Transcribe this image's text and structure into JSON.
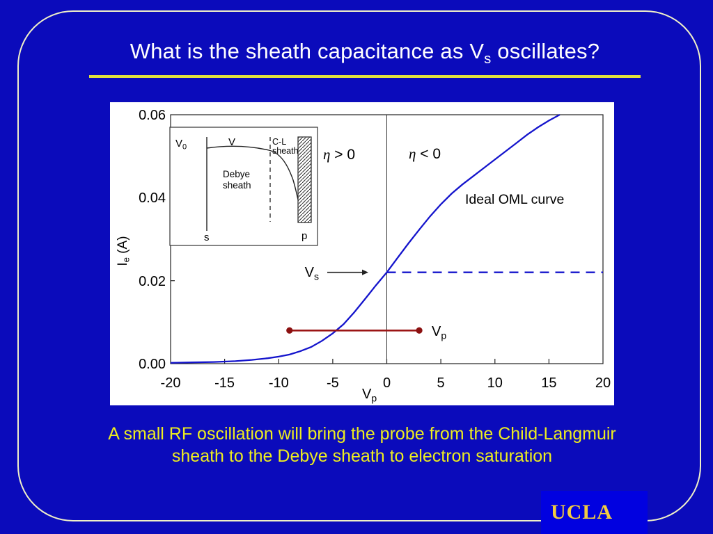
{
  "slide": {
    "title_part1": "What is the sheath capacitance as V",
    "title_sub": "s",
    "title_part2": " oscillates?",
    "caption_line1": "A small RF oscillation will bring the probe from the Child-Langmuir",
    "caption_line2": "sheath to the Debye sheath to electron saturation",
    "logo_text": "UCLA",
    "colors": {
      "bg": "#0b0bbb",
      "panel": "#ffffff",
      "border_line": "#f0f0c8",
      "title": "#ffffff",
      "underline": "#e2e23c",
      "caption": "#eded1f",
      "curve": "#1414cc",
      "zero_line": "#333333",
      "red": "#9b1515",
      "red_dot": "#8b1010",
      "ucla_box": "#0101e0",
      "ucla_text": "#f2cc40"
    }
  },
  "chart_data": {
    "type": "line",
    "title": "",
    "xlabel_main": "V",
    "xlabel_sub": "p",
    "ylabel_main": "I",
    "ylabel_sub": "e",
    "ylabel_units": " (A)",
    "xlim": [
      -20,
      20
    ],
    "ylim": [
      0,
      0.06
    ],
    "grid": false,
    "legend": "none",
    "x_ticks": [
      "-20",
      "-15",
      "-10",
      "-5",
      "0",
      "5",
      "10",
      "15",
      "20"
    ],
    "x_tick_values": [
      -20,
      -15,
      -10,
      -5,
      0,
      5,
      10,
      15,
      20
    ],
    "y_ticks": [
      "0.00",
      "0.02",
      "0.04",
      "0.06"
    ],
    "y_tick_values": [
      0,
      0.02,
      0.04,
      0.06
    ],
    "series": [
      {
        "name": "Ideal OML curve",
        "color": "#1414cc",
        "x": [
          -20,
          -18,
          -16,
          -14,
          -12.5,
          -11,
          -10,
          -9,
          -8,
          -7,
          -6,
          -5,
          -4,
          -3,
          -2,
          -1,
          0,
          1,
          2,
          3,
          4,
          5,
          6,
          7,
          8,
          9,
          10,
          11,
          12,
          13,
          14,
          15,
          16
        ],
        "y": [
          0.0002,
          0.0003,
          0.0004,
          0.0006,
          0.0009,
          0.0013,
          0.0017,
          0.0022,
          0.003,
          0.004,
          0.0055,
          0.0073,
          0.0095,
          0.0124,
          0.0156,
          0.0189,
          0.022,
          0.0255,
          0.029,
          0.0323,
          0.0355,
          0.0384,
          0.041,
          0.0432,
          0.0452,
          0.0472,
          0.0492,
          0.0512,
          0.0532,
          0.0552,
          0.057,
          0.0586,
          0.06
        ]
      }
    ],
    "annotations": {
      "eta_char": "η",
      "eta_gt": " > 0",
      "eta_lt": " < 0",
      "oml_label": "Ideal OML curve",
      "vs_label_main": "V",
      "vs_label_sub": "s",
      "vs_line_y": 0.022,
      "vp_label_main": "V",
      "vp_label_sub": "p",
      "vp_segment": {
        "x1": -9,
        "x2": 3,
        "y": 0.008
      },
      "zero_line_x": 0
    },
    "inset": {
      "v0_main": "V",
      "v0_sub": "0",
      "v_label": "V",
      "cl_line1": "C-L",
      "cl_line2": "sheath",
      "debye_line1": "Debye",
      "debye_line2": "sheath",
      "s_label": "s",
      "p_label": "p"
    }
  }
}
